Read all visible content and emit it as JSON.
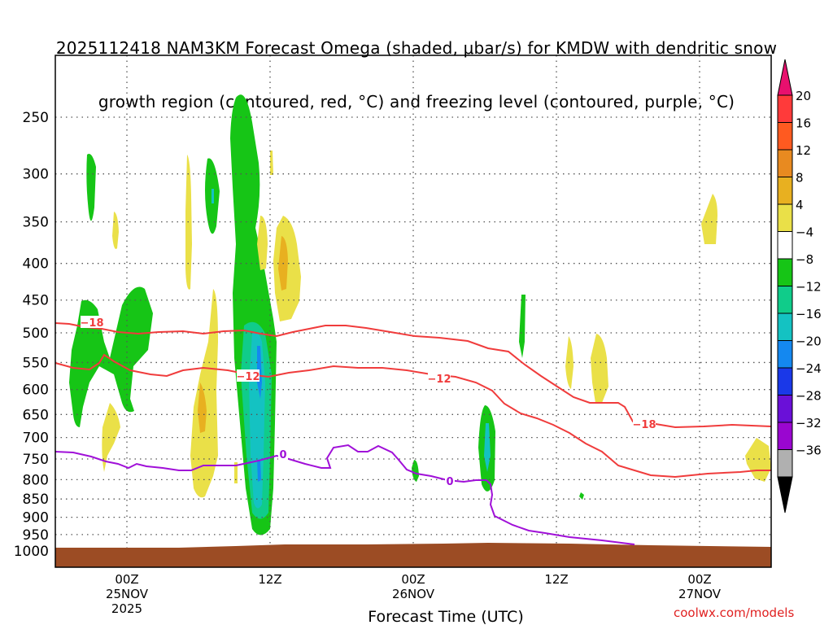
{
  "title": {
    "line1": "2025112418 NAM3KM Forecast Omega (shaded, μbar/s) for KMDW with dendritic snow",
    "line2": "growth region (contoured, red, °C) and freezing level (contoured, purple, °C)"
  },
  "credit": "coolwx.com/models",
  "chart_data": {
    "type": "heatmap",
    "xlabel": "Forecast Time (UTC)",
    "ylabel": "",
    "x_range_hours": [
      -5,
      45
    ],
    "y_levels": [
      250,
      300,
      350,
      400,
      450,
      500,
      550,
      600,
      650,
      700,
      750,
      800,
      850,
      900,
      950,
      1000
    ],
    "x_ticks": [
      {
        "hour": 0,
        "line1": "00Z",
        "line2": "25NOV",
        "line3": "2025"
      },
      {
        "hour": 10,
        "line1": "12Z",
        "line2": "",
        "line3": ""
      },
      {
        "hour": 20,
        "line1": "00Z",
        "line2": "26NOV",
        "line3": ""
      },
      {
        "hour": 30,
        "line1": "12Z",
        "line2": "",
        "line3": ""
      },
      {
        "hour": 40,
        "line1": "00Z",
        "line2": "27NOV",
        "line3": ""
      }
    ],
    "grid": true,
    "colorbar": {
      "labels": [
        "20",
        "16",
        "12",
        "8",
        "4",
        "−4",
        "−8",
        "−12",
        "−16",
        "−20",
        "−24",
        "−28",
        "−32",
        "−36"
      ],
      "colors": [
        "#e8106e",
        "#ff3a3a",
        "#ff5a20",
        "#e88a20",
        "#e8b020",
        "#eae048",
        "#ffffff",
        "#16c516",
        "#10cc8a",
        "#14c2c2",
        "#1488f0",
        "#1a38e8",
        "#6a10d8",
        "#9a06d0",
        "#b0b0b0",
        "#000000"
      ]
    },
    "contour_labels": {
      "dgz": [
        "−18",
        "−12",
        "−12",
        "−18"
      ],
      "freezing": [
        "0",
        "0"
      ]
    },
    "colors": {
      "dgz": "#f03c3c",
      "freezing": "#a010d8",
      "ground": "#9c4c24"
    }
  }
}
